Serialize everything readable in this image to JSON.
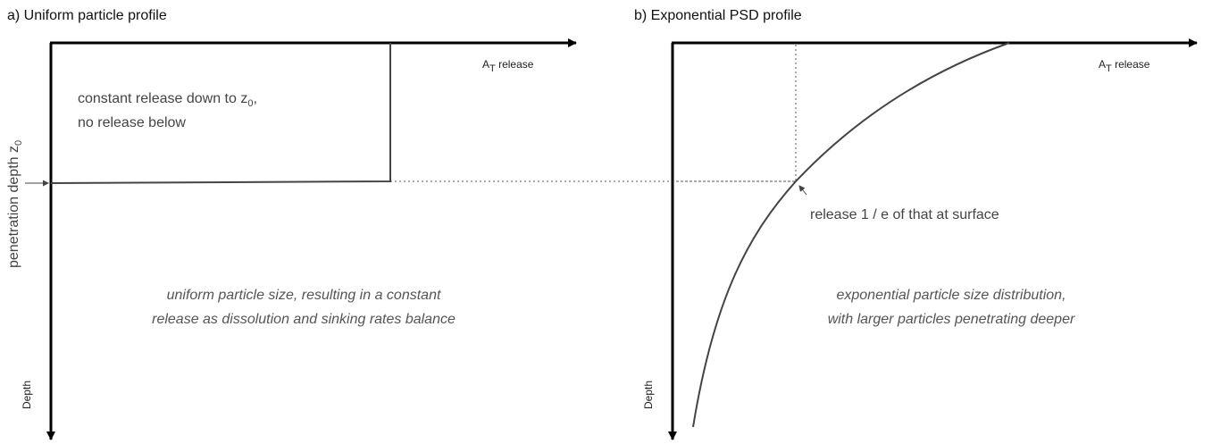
{
  "panels": [
    {
      "title": "a) Uniform particle profile",
      "x_axis": {
        "main": "A",
        "sub": "T",
        "rest": " release"
      },
      "y_axis": "Depth",
      "depth_label": {
        "main": "penetration depth z",
        "sub": "0"
      },
      "box_text": {
        "line1_main": "constant release down to z",
        "line1_sub": "0",
        "line1_rest": ",",
        "line2": "no release below"
      },
      "caption": [
        "uniform particle size, resulting in a constant",
        "release as dissolution and sinking rates balance"
      ]
    },
    {
      "title": "b) Exponential PSD profile",
      "x_axis": {
        "main": "A",
        "sub": "T",
        "rest": " release"
      },
      "y_axis": "Depth",
      "annotation": "release 1 / e  of that at surface",
      "caption": [
        "exponential particle size distribution,",
        "with larger particles penetrating deeper"
      ]
    }
  ]
}
